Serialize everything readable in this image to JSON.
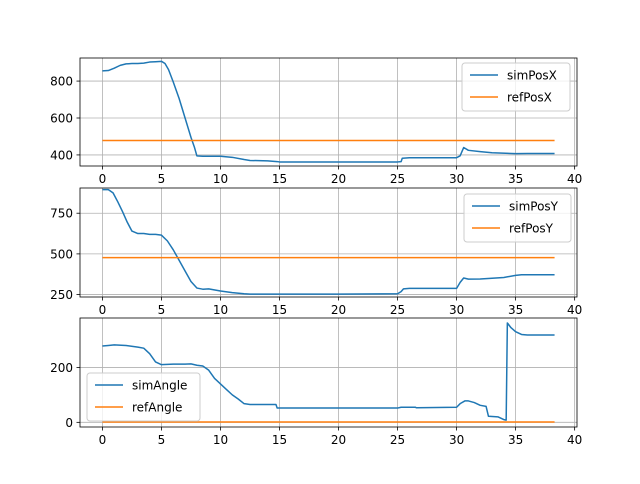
{
  "chart_data": [
    {
      "type": "line",
      "xlim": [
        -1.9,
        40.2
      ],
      "ylim": [
        340,
        925
      ],
      "grid": true,
      "legend_position": "upper right",
      "xticks": [
        0,
        5,
        10,
        15,
        20,
        25,
        30,
        35,
        40
      ],
      "yticks": [
        400,
        600,
        800
      ],
      "series": [
        {
          "name": "simPosX",
          "color": "#1f77b4",
          "x": [
            0,
            0.5,
            1,
            1.5,
            2,
            2.5,
            3,
            3.5,
            4,
            4.5,
            5,
            5.3,
            5.6,
            6,
            6.5,
            7,
            7.5,
            7.8,
            8,
            8.5,
            9,
            10,
            11,
            12,
            12.5,
            14,
            14.8,
            15,
            20,
            25,
            25.3,
            25.4,
            26,
            30,
            30.3,
            30.6,
            31,
            32,
            33,
            35,
            36,
            38.3
          ],
          "y": [
            855,
            857,
            870,
            885,
            893,
            895,
            895,
            897,
            903,
            905,
            907,
            895,
            862,
            795,
            705,
            600,
            495,
            440,
            395,
            393,
            393,
            393,
            387,
            375,
            370,
            368,
            364,
            362,
            362,
            362,
            364,
            382,
            385,
            385,
            395,
            440,
            425,
            418,
            412,
            407,
            408,
            408
          ]
        },
        {
          "name": "refPosX",
          "color": "#ff7f0e",
          "x": [
            0,
            38.3
          ],
          "y": [
            478,
            478
          ]
        }
      ]
    },
    {
      "type": "line",
      "xlim": [
        -1.9,
        40.2
      ],
      "ylim": [
        235,
        905
      ],
      "grid": true,
      "legend_position": "upper right",
      "xticks": [
        0,
        5,
        10,
        15,
        20,
        25,
        30,
        35,
        40
      ],
      "yticks": [
        250,
        500,
        750
      ],
      "series": [
        {
          "name": "simPosY",
          "color": "#1f77b4",
          "x": [
            0,
            0.5,
            0.9,
            1.3,
            1.7,
            2.1,
            2.5,
            3,
            3.5,
            4,
            4.5,
            5,
            5.5,
            6,
            6.5,
            7,
            7.5,
            8,
            8.5,
            9,
            10,
            11,
            12,
            12.5,
            15,
            20,
            25,
            25.3,
            25.5,
            26,
            30,
            30.3,
            30.6,
            31,
            32,
            33,
            34,
            35,
            35.5,
            38.3
          ],
          "y": [
            895,
            895,
            875,
            820,
            760,
            695,
            640,
            625,
            625,
            620,
            620,
            615,
            580,
            525,
            460,
            395,
            330,
            290,
            283,
            285,
            272,
            262,
            255,
            253,
            253,
            253,
            255,
            268,
            285,
            288,
            288,
            325,
            352,
            345,
            346,
            350,
            355,
            368,
            372,
            372
          ]
        },
        {
          "name": "refPosY",
          "color": "#ff7f0e",
          "x": [
            0,
            38.3
          ],
          "y": [
            477,
            477
          ]
        }
      ]
    },
    {
      "type": "line",
      "xlim": [
        -1.9,
        40.2
      ],
      "ylim": [
        -17,
        380
      ],
      "grid": true,
      "legend_position": "center left",
      "xticks": [
        0,
        5,
        10,
        15,
        20,
        25,
        30,
        35,
        40
      ],
      "yticks": [
        0,
        200
      ],
      "series": [
        {
          "name": "simAngle",
          "color": "#1f77b4",
          "x": [
            0,
            0.5,
            1,
            2,
            3,
            3.5,
            4,
            4.5,
            5,
            6,
            7,
            7.5,
            8,
            8.5,
            9,
            9.5,
            10,
            10.5,
            11,
            11.5,
            12,
            12.5,
            14.7,
            14.8,
            20,
            25,
            25.3,
            26.5,
            26.6,
            30,
            30.3,
            30.7,
            31,
            31.5,
            32,
            32.5,
            32.7,
            33.5,
            34,
            34.2,
            34.3,
            34.6,
            35,
            35.5,
            36,
            38.3
          ],
          "y": [
            278,
            280,
            282,
            280,
            274,
            270,
            250,
            220,
            210,
            212,
            212,
            213,
            208,
            205,
            190,
            160,
            140,
            120,
            100,
            85,
            68,
            65,
            65,
            52,
            52,
            52,
            55,
            55,
            53,
            55,
            68,
            78,
            78,
            72,
            62,
            58,
            22,
            20,
            10,
            8,
            362,
            345,
            330,
            320,
            318,
            318
          ]
        },
        {
          "name": "refAngle",
          "color": "#ff7f0e",
          "x": [
            0,
            38.3
          ],
          "y": [
            1,
            1
          ]
        }
      ]
    }
  ]
}
